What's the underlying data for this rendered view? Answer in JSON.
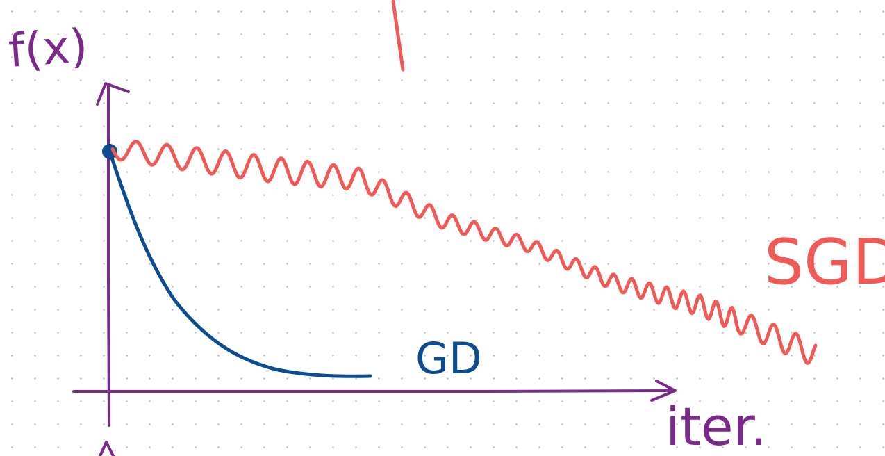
{
  "colors": {
    "axes": "#7b2a8c",
    "gd": "#0b4d8f",
    "sgd": "#f05a56",
    "dots": "#c3c3c3"
  },
  "labels": {
    "y_axis": "f(x)",
    "x_axis": "iter.",
    "gd": "GD",
    "sgd": "SGD"
  }
}
